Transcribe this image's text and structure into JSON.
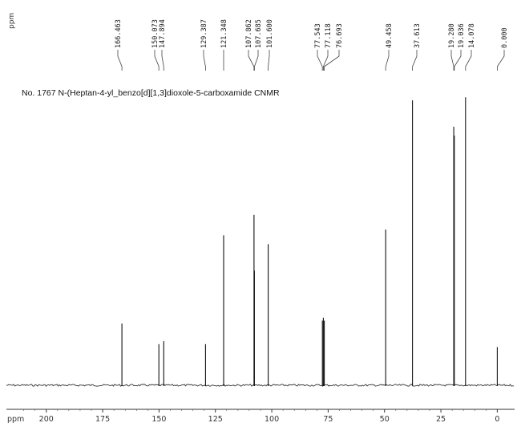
{
  "chart_data": {
    "type": "line",
    "title": "No. 1767  N-(Heptan-4-yl_benzo[d][1,3]dioxole-5-carboxamide CNMR",
    "xlabel": "ppm",
    "peak_list_unit": "ppm",
    "x_reversed": true,
    "xlim": [
      212,
      -2
    ],
    "x_ticks": [
      200,
      175,
      150,
      125,
      100,
      75,
      50,
      25,
      0
    ],
    "x_tick_labels": [
      "200",
      "175",
      "150",
      "125",
      "100",
      "75",
      "50",
      "25",
      "0"
    ],
    "grid": false,
    "peaks": [
      {
        "shift": 166.463,
        "label": "166.463",
        "intensity": 0.21
      },
      {
        "shift": 150.073,
        "label": "150.073",
        "intensity": 0.14
      },
      {
        "shift": 147.894,
        "label": "147.894",
        "intensity": 0.15
      },
      {
        "shift": 129.387,
        "label": "129.387",
        "intensity": 0.14
      },
      {
        "shift": 121.348,
        "label": "121.348",
        "intensity": 0.51
      },
      {
        "shift": 107.862,
        "label": "107.862",
        "intensity": 0.58
      },
      {
        "shift": 107.685,
        "label": "107.685",
        "intensity": 0.39
      },
      {
        "shift": 101.6,
        "label": "101.600",
        "intensity": 0.48
      },
      {
        "shift": 77.543,
        "label": "77.543",
        "intensity": 0.22
      },
      {
        "shift": 77.118,
        "label": "77.118",
        "intensity": 0.23
      },
      {
        "shift": 76.693,
        "label": "76.693",
        "intensity": 0.22
      },
      {
        "shift": 49.458,
        "label": "49.458",
        "intensity": 0.53
      },
      {
        "shift": 37.613,
        "label": "37.613",
        "intensity": 0.97
      },
      {
        "shift": 19.28,
        "label": "19.280",
        "intensity": 0.88
      },
      {
        "shift": 19.036,
        "label": "19.036",
        "intensity": 0.85
      },
      {
        "shift": 14.078,
        "label": "14.078",
        "intensity": 0.98
      },
      {
        "shift": 0.0,
        "label": "0.000",
        "intensity": 0.13
      }
    ]
  }
}
